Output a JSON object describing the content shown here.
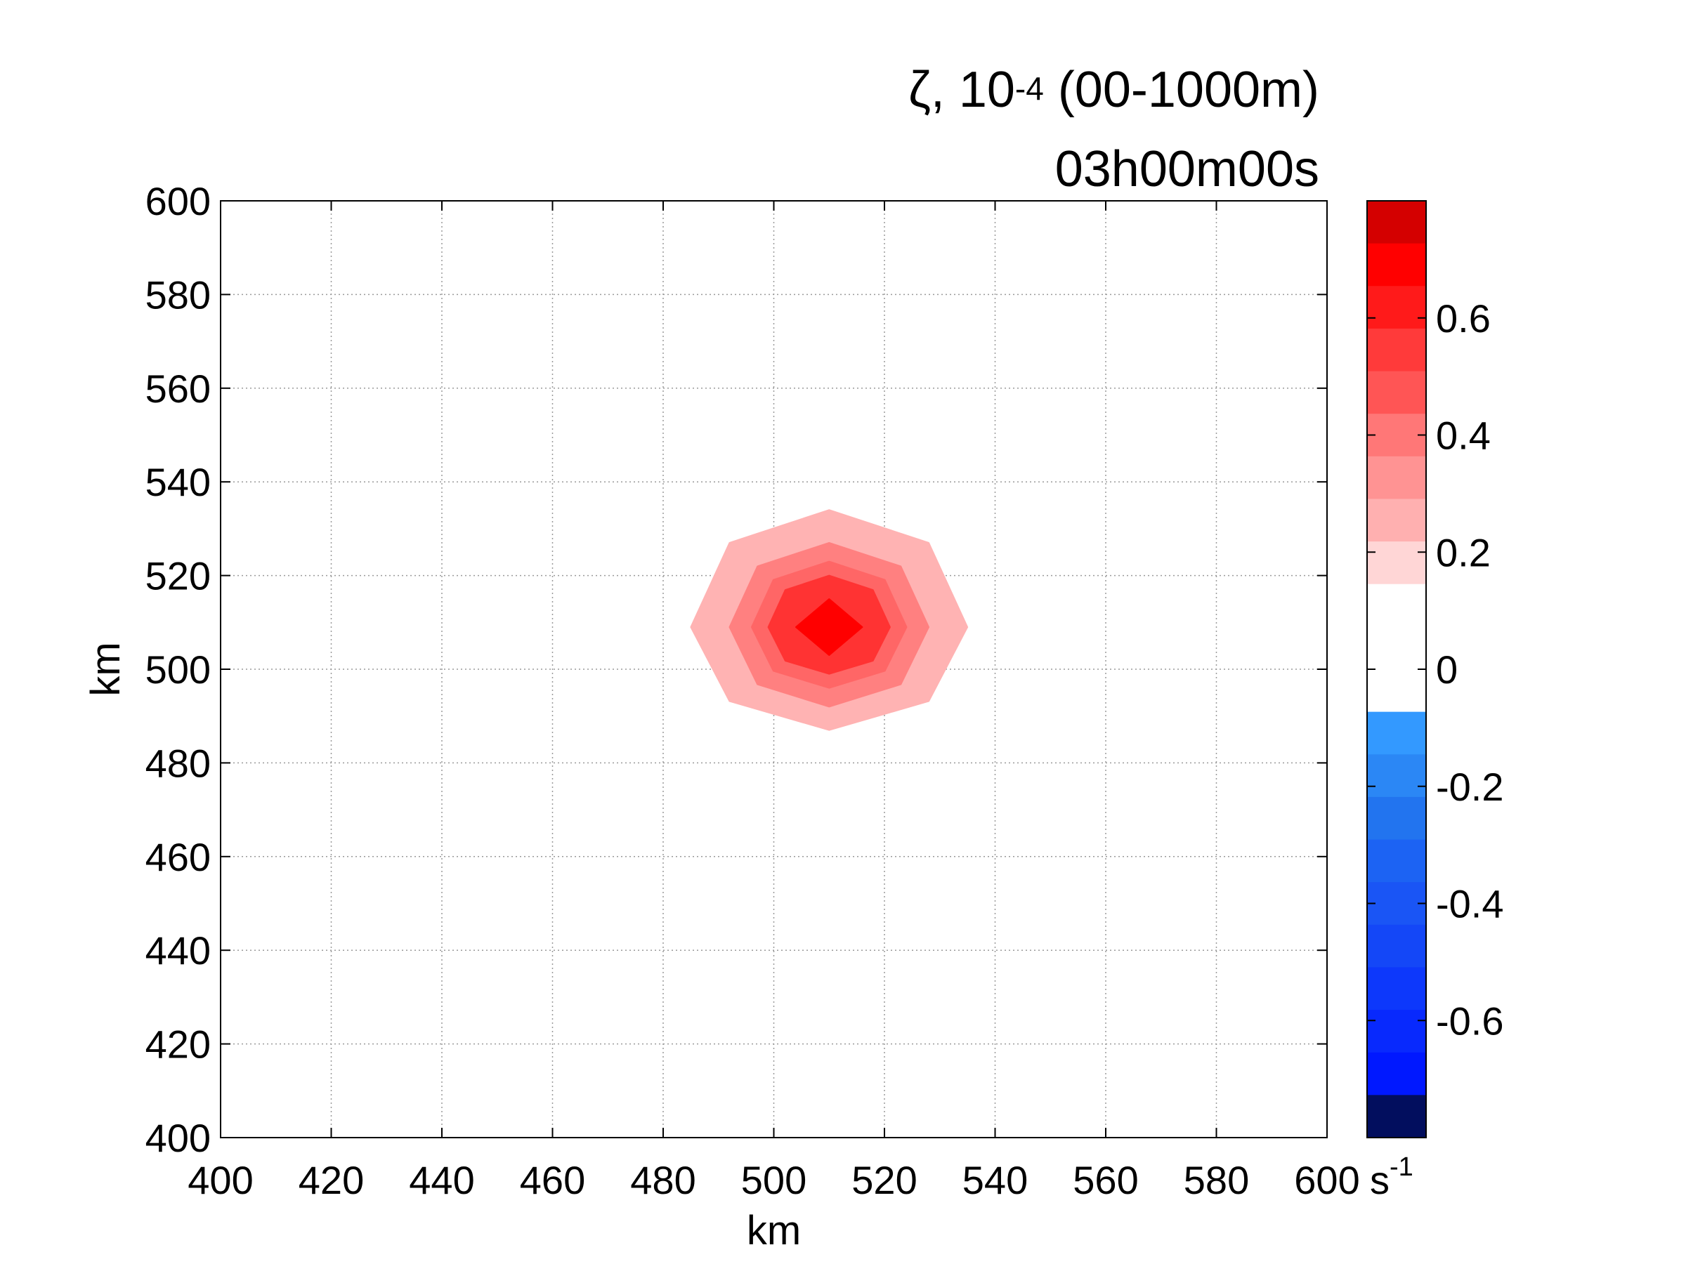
{
  "title": {
    "var": "ζ, 10",
    "exp": "-4",
    "rest": " (00-1000m)",
    "time": "03h00m00s"
  },
  "chart_data": {
    "type": "heatmap",
    "subtype": "filled-contour",
    "xlabel": "km",
    "ylabel": "km",
    "xlim": [
      400,
      600
    ],
    "ylim": [
      400,
      600
    ],
    "xticks": [
      "400",
      "420",
      "440",
      "460",
      "480",
      "500",
      "520",
      "540",
      "560",
      "580",
      "600"
    ],
    "yticks": [
      "400",
      "420",
      "440",
      "460",
      "480",
      "500",
      "520",
      "540",
      "560",
      "580",
      "600"
    ],
    "grid": true,
    "field": {
      "center_x": 510,
      "center_y": 509,
      "peak_value": 0.75,
      "contours": [
        {
          "level": 0.1,
          "color": "#ffb3b3",
          "rx": 25,
          "ry_top": 25,
          "ry_bottom": 22
        },
        {
          "level": 0.3,
          "color": "#ff8080",
          "rx": 18,
          "ry_top": 18,
          "ry_bottom": 17
        },
        {
          "level": 0.4,
          "color": "#ff6666",
          "rx": 14,
          "ry_top": 14,
          "ry_bottom": 13
        },
        {
          "level": 0.5,
          "color": "#ff3333",
          "rx": 11,
          "ry_top": 11,
          "ry_bottom": 10
        },
        {
          "level": 0.7,
          "color": "#ff0000",
          "rx": 6,
          "ry_top": 6,
          "ry_bottom": 6
        }
      ]
    },
    "colorbar": {
      "range": [
        -0.8,
        0.8
      ],
      "ticks": [
        "-0.6",
        "-0.4",
        "-0.2",
        "0",
        "0.2",
        "0.4",
        "0.6"
      ],
      "tick_values": [
        -0.6,
        -0.4,
        -0.2,
        0,
        0.2,
        0.4,
        0.6
      ],
      "unit_base": "s",
      "unit_exp": "-1",
      "bins": [
        {
          "from": 0.7,
          "to": 0.8,
          "color": "#d40000"
        },
        {
          "from": 0.6,
          "to": 0.7,
          "color": "#ff0000"
        },
        {
          "from": 0.5,
          "to": 0.6,
          "color": "#ff1a1a"
        },
        {
          "from": 0.4,
          "to": 0.5,
          "color": "#ff3a3a"
        },
        {
          "from": 0.3,
          "to": 0.4,
          "color": "#ff5555"
        },
        {
          "from": 0.2,
          "to": 0.3,
          "color": "#ff7777"
        },
        {
          "from": 0.1,
          "to": 0.2,
          "color": "#ff9393"
        },
        {
          "from": 0.0,
          "to": 0.1,
          "color": "#ffb0b0"
        },
        {
          "from": -0.1,
          "to": 0.0,
          "color": "#ffd6d6"
        },
        {
          "from": -0.2,
          "to": -0.1,
          "color": "#ffffff"
        },
        {
          "from": -0.3,
          "to": -0.2,
          "color": "#ffffff"
        },
        {
          "from": -0.4,
          "to": -0.3,
          "color": "#ffffff"
        },
        {
          "from": -0.5,
          "to": -0.4,
          "color": "#3399ff"
        },
        {
          "from": -0.6,
          "to": -0.5,
          "color": "#2b87f5"
        },
        {
          "from": -0.7,
          "to": -0.6,
          "color": "#2274ef"
        },
        {
          "from": -0.8,
          "to": -0.7,
          "color": "#1c63f3"
        }
      ],
      "bins_lower": [
        {
          "color": "#1a55f5"
        },
        {
          "color": "#1447f7"
        },
        {
          "color": "#0d38fb"
        },
        {
          "color": "#0829fd"
        },
        {
          "color": "#0018ff"
        },
        {
          "color": "#020e5e"
        }
      ]
    }
  }
}
